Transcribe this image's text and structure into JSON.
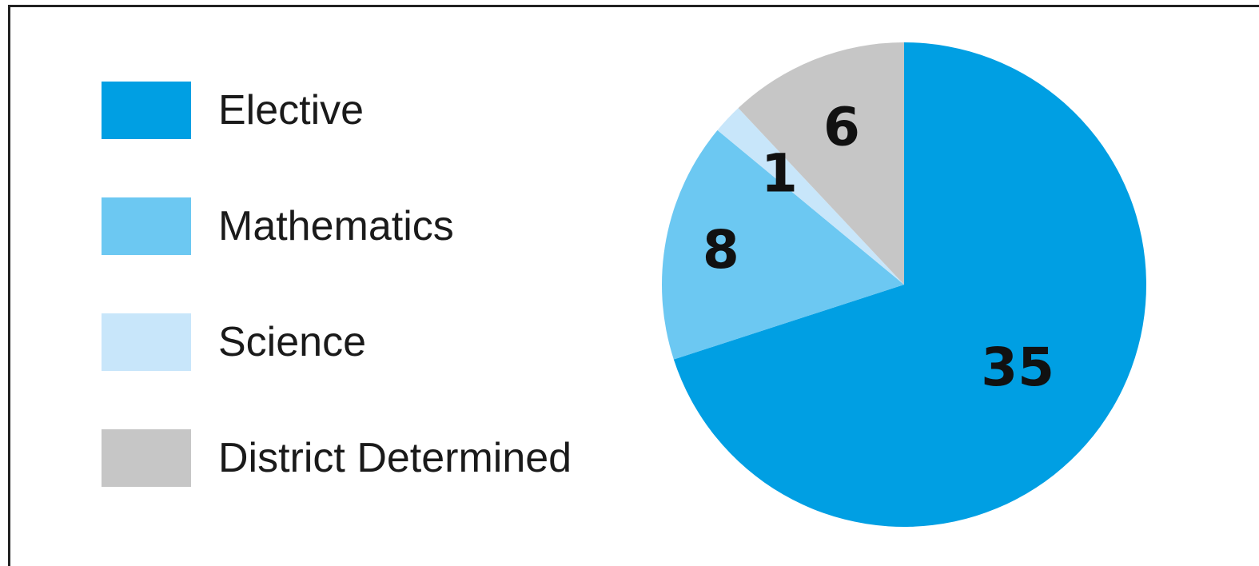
{
  "chart_data": {
    "type": "pie",
    "categories": [
      "Elective",
      "Mathematics",
      "Science",
      "District Determined"
    ],
    "values": [
      35,
      8,
      1,
      6
    ],
    "colors": [
      "#009fe3",
      "#6cc8f2",
      "#c8e6fa",
      "#c6c6c6"
    ],
    "data_labels": [
      "35",
      "8",
      "1",
      "6"
    ],
    "start_angle_deg": 0,
    "direction": "clockwise",
    "legend": {
      "placement": "left",
      "entries": [
        "Elective",
        "Mathematics",
        "Science",
        "District Determined"
      ]
    }
  }
}
